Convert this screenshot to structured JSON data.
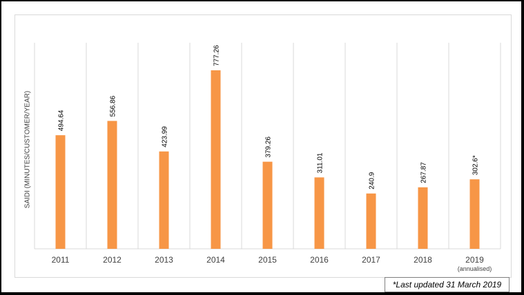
{
  "chart_data": {
    "type": "bar",
    "ylabel": "SAIDI (MINUTES/CUSTOMER/YEAR)",
    "categories": [
      "2011",
      "2012",
      "2013",
      "2014",
      "2015",
      "2016",
      "2017",
      "2018",
      "2019"
    ],
    "category_sublabels": [
      "",
      "",
      "",
      "",
      "",
      "",
      "",
      "",
      "(annualised)"
    ],
    "values": [
      494.64,
      556.86,
      423.99,
      777.26,
      379.26,
      311.01,
      240.9,
      267.87,
      302.6
    ],
    "data_labels": [
      "494.64",
      "556.86",
      "423.99",
      "777.26",
      "379.26",
      "311.01",
      "240.9",
      "267.87",
      "302.6*"
    ],
    "ylim": [
      0,
      800
    ],
    "bar_color": "#F79646",
    "grid": "vertical category separators",
    "legend": "none"
  },
  "footnote": "*Last updated 31 March 2019"
}
